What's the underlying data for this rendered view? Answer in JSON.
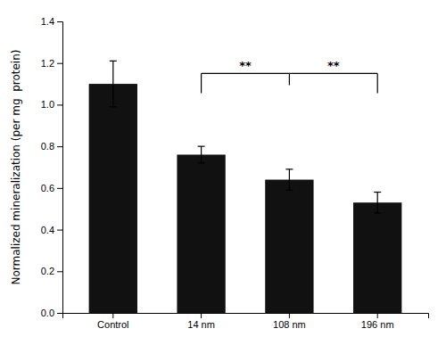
{
  "chart_data": {
    "type": "bar",
    "categories": [
      "Control",
      "14 nm",
      "108 nm",
      "196 nm"
    ],
    "values": [
      1.1,
      0.76,
      0.64,
      0.53
    ],
    "errors": [
      0.11,
      0.04,
      0.05,
      0.05
    ],
    "color": "#111111",
    "ylabel": "Normalized mineralization (per mg  protein)",
    "ylim": [
      0,
      1.4
    ],
    "yticks": [
      {
        "value": 0.0,
        "label": "0.0"
      },
      0.2,
      0.4,
      0.6,
      0.8,
      {
        "value": 1.0,
        "label": "1.0"
      },
      1.2,
      1.4
    ],
    "grid": false,
    "annotations": [
      {
        "text": "**",
        "from": "14 nm",
        "to": "108 nm",
        "y": 1.15
      },
      {
        "text": "**",
        "from": "108 nm",
        "to": "196 nm",
        "y": 1.15
      }
    ]
  }
}
